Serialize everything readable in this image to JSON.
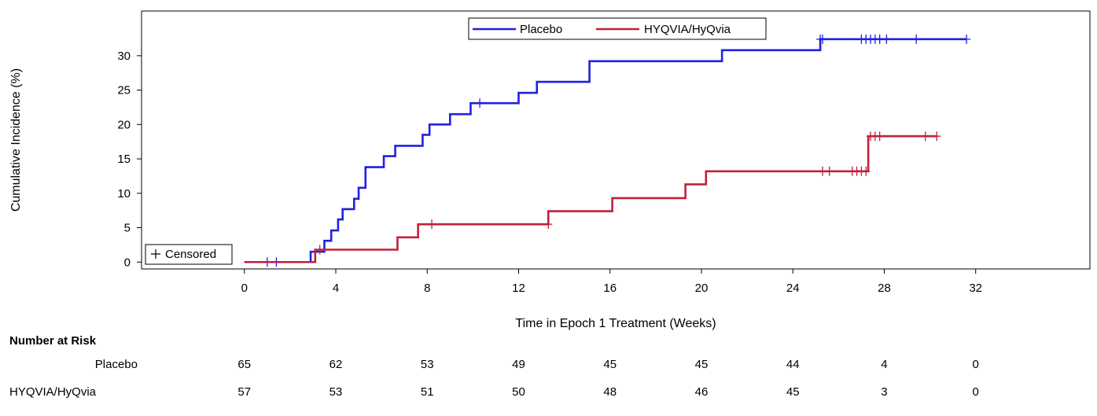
{
  "chart_data": {
    "type": "line",
    "subtype": "step (Kaplan-Meier cumulative incidence)",
    "title": "",
    "xlabel": "Time in Epoch 1 Treatment (Weeks)",
    "ylabel": "Cumulative Incidence (%)",
    "x_ticks": [
      "0",
      "4",
      "8",
      "12",
      "16",
      "20",
      "24",
      "28",
      "32"
    ],
    "y_ticks": [
      "0",
      "5",
      "10",
      "15",
      "20",
      "25",
      "30"
    ],
    "xlim": [
      -4.5,
      37
    ],
    "ylim": [
      -1,
      36.5
    ],
    "grid": false,
    "legend_position": "top-center",
    "censor_legend_label": "Censored",
    "censor_legend_position": "bottom-left",
    "series": [
      {
        "name": "Placebo",
        "color": "#2020e0",
        "steps": [
          [
            0,
            0
          ],
          [
            2.9,
            1.5
          ],
          [
            3.5,
            3.1
          ],
          [
            3.8,
            4.6
          ],
          [
            4.1,
            6.2
          ],
          [
            4.3,
            7.7
          ],
          [
            4.8,
            9.2
          ],
          [
            5.0,
            10.8
          ],
          [
            5.3,
            13.8
          ],
          [
            6.1,
            15.4
          ],
          [
            6.6,
            16.9
          ],
          [
            7.8,
            18.5
          ],
          [
            8.1,
            20.0
          ],
          [
            9.0,
            21.5
          ],
          [
            9.9,
            23.1
          ],
          [
            12.0,
            24.6
          ],
          [
            12.8,
            26.2
          ],
          [
            15.1,
            29.2
          ],
          [
            20.9,
            30.8
          ],
          [
            25.2,
            32.4
          ],
          [
            31.6,
            32.4
          ]
        ],
        "censored": [
          [
            1.0,
            0
          ],
          [
            1.4,
            0
          ],
          [
            10.3,
            23.1
          ],
          [
            25.2,
            32.4
          ],
          [
            25.3,
            32.4
          ],
          [
            27.0,
            32.4
          ],
          [
            27.2,
            32.4
          ],
          [
            27.4,
            32.4
          ],
          [
            27.6,
            32.4
          ],
          [
            27.8,
            32.4
          ],
          [
            28.1,
            32.4
          ],
          [
            29.4,
            32.4
          ],
          [
            31.6,
            32.4
          ]
        ]
      },
      {
        "name": "HYQVIA/HyQvia",
        "color": "#c0203a",
        "steps": [
          [
            0,
            0
          ],
          [
            3.1,
            1.8
          ],
          [
            6.7,
            3.6
          ],
          [
            7.6,
            5.5
          ],
          [
            13.3,
            7.4
          ],
          [
            16.1,
            9.3
          ],
          [
            19.3,
            11.3
          ],
          [
            20.2,
            13.2
          ],
          [
            27.3,
            18.3
          ],
          [
            30.3,
            18.3
          ]
        ],
        "censored": [
          [
            3.3,
            1.8
          ],
          [
            8.2,
            5.5
          ],
          [
            13.3,
            5.5
          ],
          [
            25.3,
            13.2
          ],
          [
            25.6,
            13.2
          ],
          [
            26.6,
            13.2
          ],
          [
            26.8,
            13.2
          ],
          [
            27.0,
            13.2
          ],
          [
            27.2,
            13.2
          ],
          [
            27.4,
            18.3
          ],
          [
            27.6,
            18.3
          ],
          [
            27.8,
            18.3
          ],
          [
            29.8,
            18.3
          ],
          [
            30.3,
            18.3
          ]
        ]
      }
    ]
  },
  "risk_table": {
    "title": "Number at Risk",
    "times": [
      0,
      4,
      8,
      12,
      16,
      20,
      24,
      28,
      32
    ],
    "rows": [
      {
        "label": "Placebo",
        "values": [
          "65",
          "62",
          "53",
          "49",
          "45",
          "45",
          "44",
          "4",
          "0"
        ]
      },
      {
        "label": "HYQVIA/HyQvia",
        "values": [
          "57",
          "53",
          "51",
          "50",
          "48",
          "46",
          "45",
          "3",
          "0"
        ]
      }
    ]
  }
}
